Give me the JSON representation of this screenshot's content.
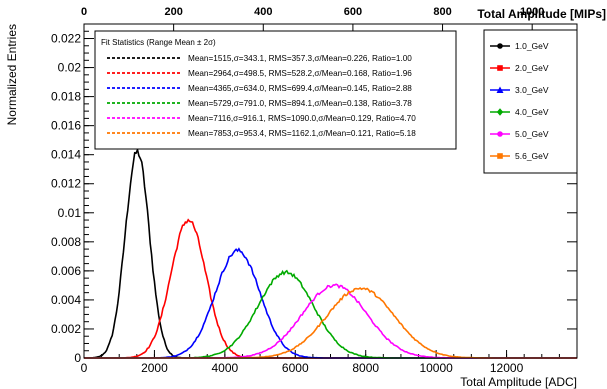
{
  "chart_data": {
    "type": "line",
    "xlabel": "Total Amplitude [ADC]",
    "ylabel": "Normalized Entries",
    "xlim": [
      0,
      14000
    ],
    "ylim": [
      0,
      0.023
    ],
    "x_ticks": [
      0,
      2000,
      4000,
      6000,
      8000,
      10000,
      12000
    ],
    "y_ticks": [
      0,
      0.002,
      0.004,
      0.006,
      0.008,
      0.01,
      0.012,
      0.014,
      0.016,
      0.018,
      0.02,
      0.022
    ],
    "top_axis": {
      "label": "Total Amplitude [MIPs]",
      "range": [
        0,
        1100
      ],
      "ticks": [
        0,
        200,
        400,
        600,
        800,
        1000
      ]
    },
    "fit_box": {
      "title": "Fit Statistics (Range Mean ± 2σ)",
      "rows": [
        "Mean=1515,σ=343.1, RMS=357.3,σ/Mean=0.226, Ratio=1.00",
        "Mean=2964,σ=498.5, RMS=528.2,σ/Mean=0.168, Ratio=1.96",
        "Mean=4365,σ=634.0, RMS=699.4,σ/Mean=0.145, Ratio=2.88",
        "Mean=5729,σ=791.0, RMS=894.1,σ/Mean=0.138, Ratio=3.78",
        "Mean=7116,σ=916.1, RMS=1090.0,σ/Mean=0.129, Ratio=4.70",
        "Mean=7853,σ=953.4, RMS=1162.1,σ/Mean=0.121, Ratio=5.18"
      ]
    },
    "legend_position": "top-right",
    "series": [
      {
        "name": "1.0_GeV",
        "color": "#000000",
        "marker": "circle",
        "mean": 1515,
        "sigma": 343.1,
        "peak": 0.0142
      },
      {
        "name": "2.0_GeV",
        "color": "#ff0000",
        "marker": "square",
        "mean": 2964,
        "sigma": 498.5,
        "peak": 0.0095
      },
      {
        "name": "3.0_GeV",
        "color": "#0000ff",
        "marker": "triangle",
        "mean": 4365,
        "sigma": 634.0,
        "peak": 0.0074
      },
      {
        "name": "4.0_GeV",
        "color": "#00aa00",
        "marker": "diamond",
        "mean": 5729,
        "sigma": 791.0,
        "peak": 0.0059
      },
      {
        "name": "5.0_GeV",
        "color": "#ff00ff",
        "marker": "circle",
        "mean": 7116,
        "sigma": 916.1,
        "peak": 0.005
      },
      {
        "name": "5.6_GeV",
        "color": "#ff7700",
        "marker": "square",
        "mean": 7853,
        "sigma": 953.4,
        "peak": 0.0048
      }
    ]
  }
}
